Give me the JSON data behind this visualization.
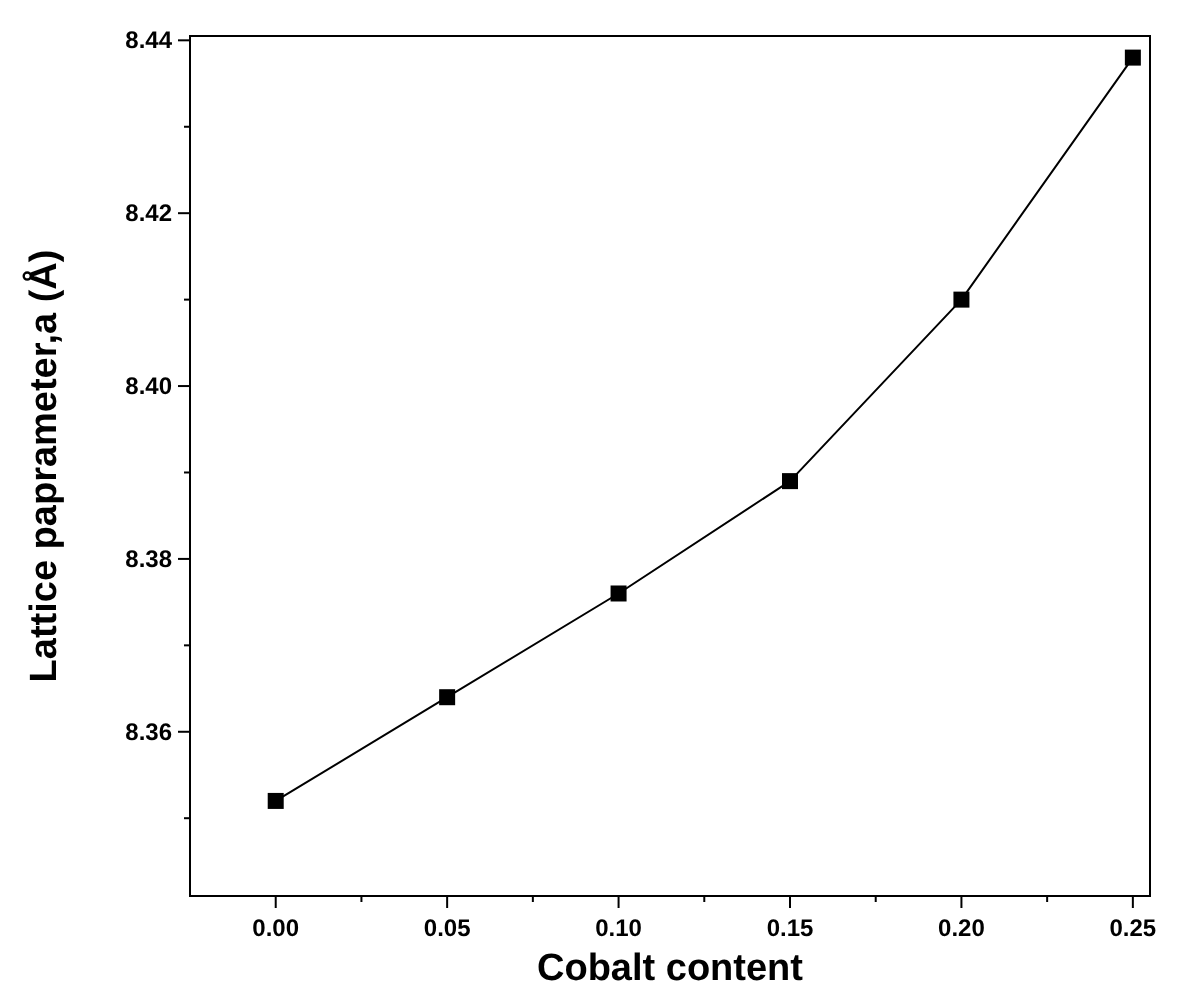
{
  "chart_data": {
    "type": "line",
    "xlabel": "Cobalt content",
    "ylabel": "Lattice paprameter,a (Å)",
    "x": [
      0,
      0.05,
      0.1,
      0.15,
      0.2,
      0.25
    ],
    "series": [
      {
        "color": "#000000",
        "values": [
          8.352,
          8.364,
          8.376,
          8.389,
          8.41,
          8.438
        ]
      }
    ],
    "marker": "square",
    "line_style": "solid",
    "grid": false,
    "xlim": [
      -0.025,
      0.255
    ],
    "xticks": [
      {
        "value": 0,
        "label": "0.00"
      },
      {
        "value": 0.025,
        "label": null
      },
      {
        "value": 0.05,
        "label": "0.05"
      },
      {
        "value": 0.075,
        "label": null
      },
      {
        "value": 0.1,
        "label": "0.10"
      },
      {
        "value": 0.125,
        "label": null
      },
      {
        "value": 0.15,
        "label": "0.15"
      },
      {
        "value": 0.175,
        "label": null
      },
      {
        "value": 0.2,
        "label": "0.20"
      },
      {
        "value": 0.225,
        "label": null
      },
      {
        "value": 0.25,
        "label": "0.25"
      }
    ],
    "ylim": [
      8.341,
      8.4405
    ],
    "yticks": [
      {
        "value": 8.35,
        "label": null
      },
      {
        "value": 8.36,
        "label": "8.36"
      },
      {
        "value": 8.37,
        "label": null
      },
      {
        "value": 8.38,
        "label": "8.38"
      },
      {
        "value": 8.39,
        "label": null
      },
      {
        "value": 8.4,
        "label": "8.40"
      },
      {
        "value": 8.41,
        "label": null
      },
      {
        "value": 8.42,
        "label": "8.42"
      },
      {
        "value": 8.43,
        "label": null
      },
      {
        "value": 8.44,
        "label": "8.44"
      }
    ]
  }
}
